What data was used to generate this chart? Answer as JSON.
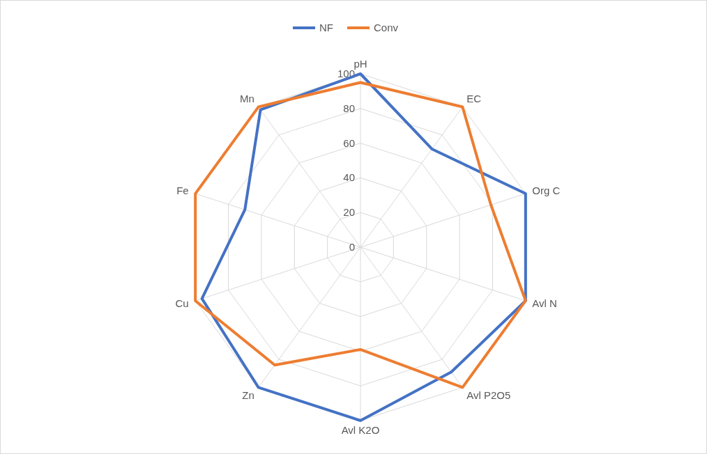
{
  "chart_data": {
    "type": "radar",
    "categories": [
      "pH",
      "EC",
      "Org C",
      "Avl N",
      "Avl P2O5",
      "Avl K2O",
      "Zn",
      "Cu",
      "Fe",
      "Mn"
    ],
    "series": [
      {
        "name": "NF",
        "color": "#4472c4",
        "values": [
          100,
          70,
          100,
          100,
          89,
          100,
          100,
          96,
          70,
          98
        ]
      },
      {
        "name": "Conv",
        "color": "#ed7d31",
        "values": [
          95,
          100,
          79,
          100,
          100,
          59,
          84,
          100,
          100,
          100
        ]
      }
    ],
    "ylim": [
      0,
      100
    ],
    "yticks": [
      0,
      20,
      40,
      60,
      80,
      100
    ],
    "grid": true,
    "legend": "top",
    "marker": "none",
    "line_style": "solid"
  }
}
